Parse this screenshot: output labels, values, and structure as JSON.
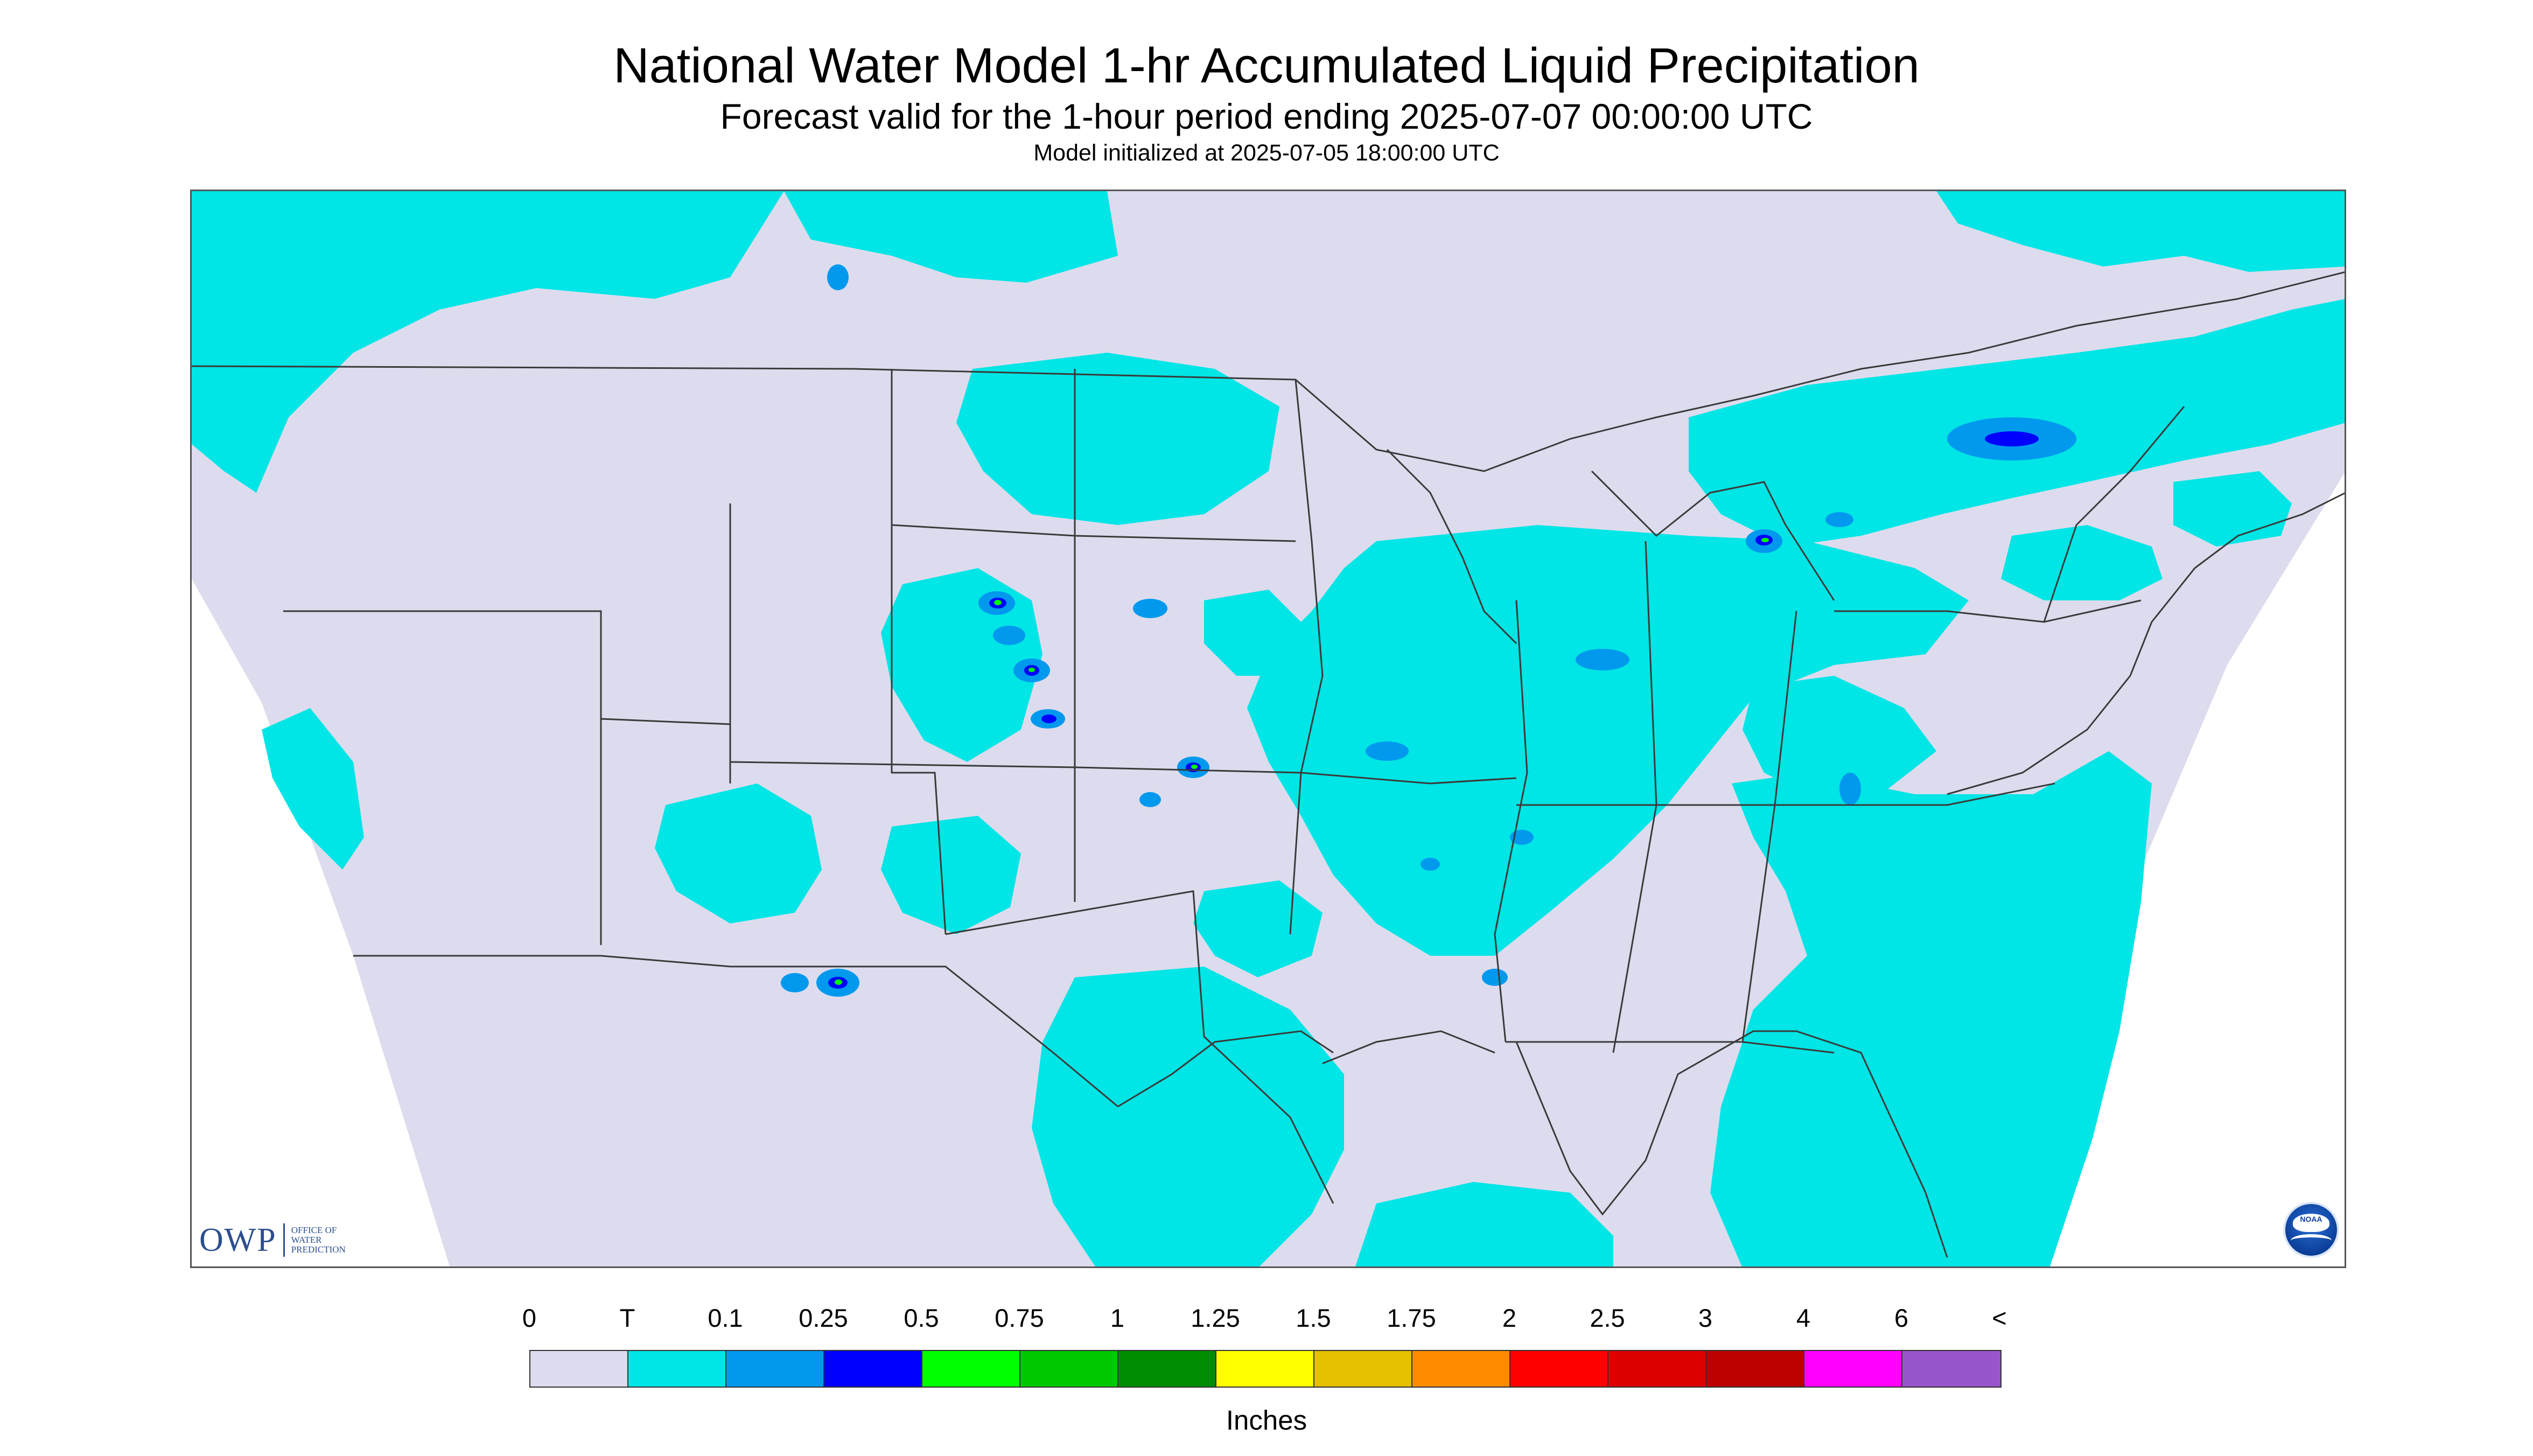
{
  "header": {
    "title": "National Water Model 1-hr Accumulated Liquid Precipitation",
    "subtitle": "Forecast valid for the 1-hour period ending 2025-07-07 00:00:00 UTC",
    "model_init": "Model initialized at 2025-07-05 18:00:00 UTC"
  },
  "map": {
    "background_color": "#dcdcee",
    "boundary_color": "#3a3a3a",
    "precip_primary_color": "#00e5e5"
  },
  "branding": {
    "owp_mark": "OWP",
    "owp_text": "OFFICE OF\nWATER\nPREDICTION",
    "noaa_text": "NOAA"
  },
  "legend": {
    "labels": [
      "0",
      "T",
      "0.1",
      "0.25",
      "0.5",
      "0.75",
      "1",
      "1.25",
      "1.5",
      "1.75",
      "2",
      "2.5",
      "3",
      "4",
      "6",
      "<"
    ],
    "colors": [
      "#dcdcee",
      "#00e5e5",
      "#0099ee",
      "#0000ff",
      "#00ff00",
      "#00c800",
      "#008c00",
      "#ffff00",
      "#e6bf00",
      "#ff8c00",
      "#ff0000",
      "#dd0000",
      "#bb0000",
      "#ff00ff",
      "#9955cc"
    ],
    "units": "Inches"
  }
}
